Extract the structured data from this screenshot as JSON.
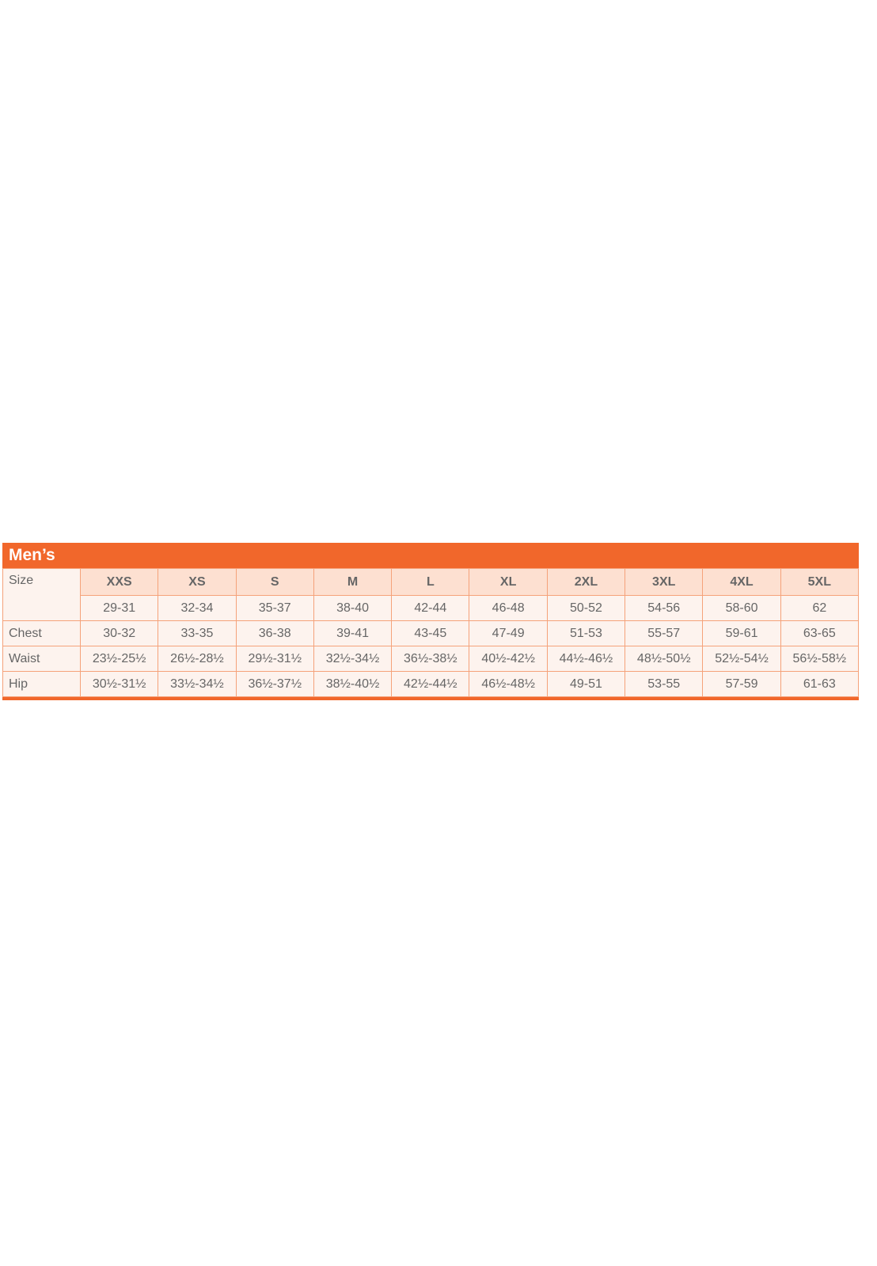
{
  "title": "Men’s",
  "colors": {
    "accent": "#f1672b",
    "header_bg": "#fde0d1",
    "cell_bg": "#fdf3ee"
  },
  "row_labels": {
    "size": "Size",
    "chest": "Chest",
    "waist": "Waist",
    "hip": "Hip"
  },
  "sizes": [
    "XXS",
    "XS",
    "S",
    "M",
    "L",
    "XL",
    "2XL",
    "3XL",
    "4XL",
    "5XL"
  ],
  "size_numbers": [
    "29-31",
    "32-34",
    "35-37",
    "38-40",
    "42-44",
    "46-48",
    "50-52",
    "54-56",
    "58-60",
    "62"
  ],
  "chest": [
    "30-32",
    "33-35",
    "36-38",
    "39-41",
    "43-45",
    "47-49",
    "51-53",
    "55-57",
    "59-61",
    "63-65"
  ],
  "waist": [
    "23½-25½",
    "26½-28½",
    "29½-31½",
    "32½-34½",
    "36½-38½",
    "40½-42½",
    "44½-46½",
    "48½-50½",
    "52½-54½",
    "56½-58½"
  ],
  "hip": [
    "30½-31½",
    "33½-34½",
    "36½-37½",
    "38½-40½",
    "42½-44½",
    "46½-48½",
    "49-51",
    "53-55",
    "57-59",
    "61-63"
  ]
}
